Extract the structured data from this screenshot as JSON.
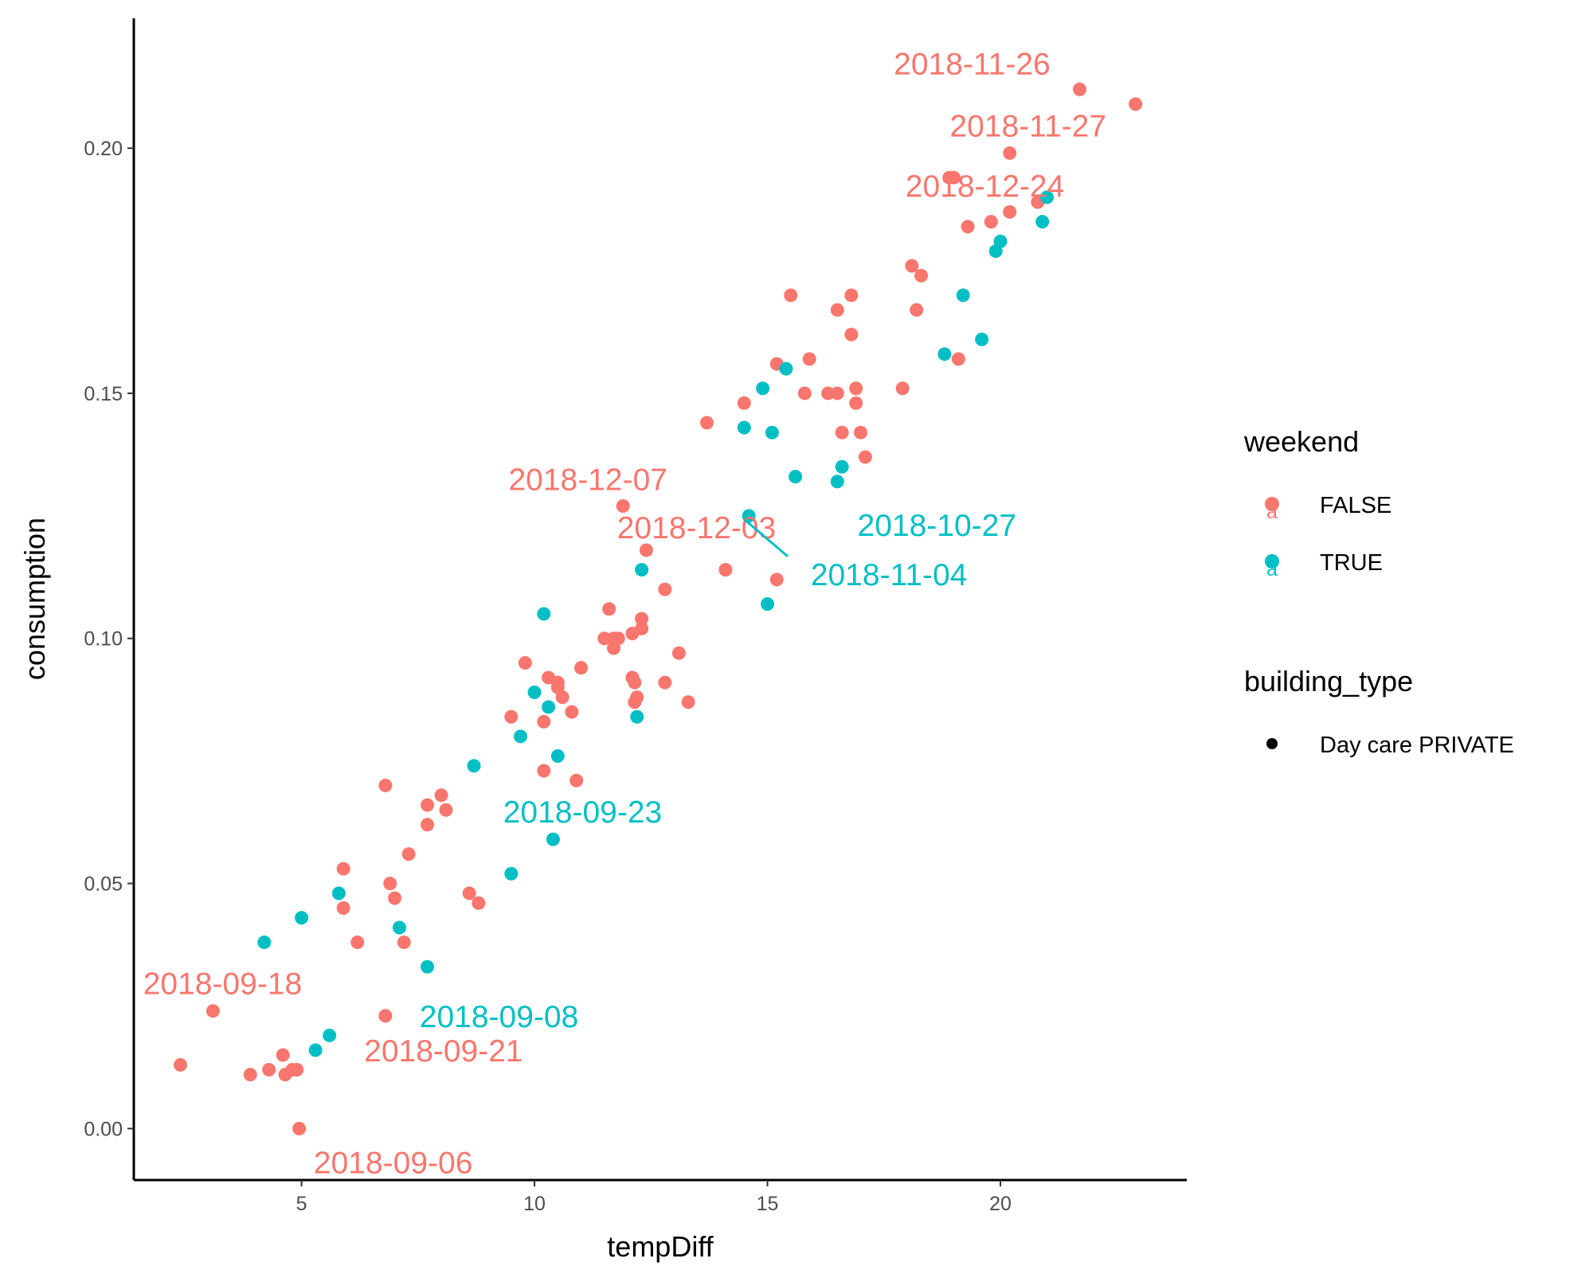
{
  "chart_data": {
    "type": "scatter",
    "title": "",
    "xlabel": "tempDiff",
    "ylabel": "consumption",
    "xlim": [
      1.4,
      24.0
    ],
    "ylim": [
      -0.0105,
      0.2265
    ],
    "x_ticks": [
      5,
      10,
      15,
      20
    ],
    "x_tick_labels": [
      "5",
      "10",
      "15",
      "20"
    ],
    "y_ticks": [
      0.0,
      0.05,
      0.1,
      0.15,
      0.2
    ],
    "y_tick_labels": [
      "0.00",
      "0.05",
      "0.10",
      "0.15",
      "0.20"
    ],
    "grid": false,
    "legend_position": "right",
    "colors": {
      "FALSE": "#F8766D",
      "TRUE": "#00BFC4",
      "axis": "#000000"
    },
    "legends": [
      {
        "title": "weekend",
        "entries": [
          {
            "label": "FALSE",
            "color": "#F8766D"
          },
          {
            "label": "TRUE",
            "color": "#00BFC4"
          }
        ]
      },
      {
        "title": "building_type",
        "entries": [
          {
            "label": "Day care PRIVATE",
            "color": "#000000"
          }
        ]
      }
    ],
    "series": [
      {
        "name": "FALSE",
        "color": "#F8766D",
        "points": [
          [
            2.4,
            0.013
          ],
          [
            3.1,
            0.024
          ],
          [
            3.9,
            0.011
          ],
          [
            4.3,
            0.012
          ],
          [
            4.6,
            0.015
          ],
          [
            4.65,
            0.011
          ],
          [
            4.8,
            0.012
          ],
          [
            4.9,
            0.012
          ],
          [
            4.95,
            0.0
          ],
          [
            5.9,
            0.053
          ],
          [
            5.9,
            0.045
          ],
          [
            6.2,
            0.038
          ],
          [
            6.8,
            0.023
          ],
          [
            6.8,
            0.07
          ],
          [
            6.9,
            0.05
          ],
          [
            7.0,
            0.047
          ],
          [
            7.2,
            0.038
          ],
          [
            7.3,
            0.056
          ],
          [
            7.7,
            0.066
          ],
          [
            7.7,
            0.062
          ],
          [
            8.0,
            0.068
          ],
          [
            8.1,
            0.065
          ],
          [
            8.6,
            0.048
          ],
          [
            8.8,
            0.046
          ],
          [
            9.5,
            0.084
          ],
          [
            9.8,
            0.095
          ],
          [
            10.2,
            0.073
          ],
          [
            10.2,
            0.083
          ],
          [
            10.3,
            0.092
          ],
          [
            10.5,
            0.091
          ],
          [
            10.5,
            0.09
          ],
          [
            10.6,
            0.088
          ],
          [
            10.8,
            0.085
          ],
          [
            10.9,
            0.071
          ],
          [
            11.0,
            0.094
          ],
          [
            11.5,
            0.1
          ],
          [
            11.6,
            0.106
          ],
          [
            11.7,
            0.1
          ],
          [
            11.7,
            0.098
          ],
          [
            11.8,
            0.1
          ],
          [
            11.9,
            0.127
          ],
          [
            12.1,
            0.101
          ],
          [
            12.1,
            0.092
          ],
          [
            12.15,
            0.091
          ],
          [
            12.15,
            0.087
          ],
          [
            12.2,
            0.088
          ],
          [
            12.3,
            0.102
          ],
          [
            12.3,
            0.104
          ],
          [
            12.4,
            0.118
          ],
          [
            12.8,
            0.091
          ],
          [
            12.8,
            0.11
          ],
          [
            13.1,
            0.097
          ],
          [
            13.3,
            0.087
          ],
          [
            13.7,
            0.144
          ],
          [
            14.1,
            0.114
          ],
          [
            14.5,
            0.148
          ],
          [
            15.2,
            0.112
          ],
          [
            15.2,
            0.156
          ],
          [
            15.5,
            0.17
          ],
          [
            15.8,
            0.15
          ],
          [
            15.9,
            0.157
          ],
          [
            16.3,
            0.15
          ],
          [
            16.5,
            0.15
          ],
          [
            16.5,
            0.167
          ],
          [
            16.6,
            0.142
          ],
          [
            16.8,
            0.162
          ],
          [
            16.8,
            0.17
          ],
          [
            16.9,
            0.151
          ],
          [
            16.9,
            0.148
          ],
          [
            17.0,
            0.142
          ],
          [
            17.1,
            0.137
          ],
          [
            17.9,
            0.151
          ],
          [
            18.1,
            0.176
          ],
          [
            18.2,
            0.167
          ],
          [
            18.3,
            0.174
          ],
          [
            18.9,
            0.194
          ],
          [
            19.0,
            0.194
          ],
          [
            19.1,
            0.157
          ],
          [
            19.3,
            0.184
          ],
          [
            19.8,
            0.185
          ],
          [
            20.2,
            0.187
          ],
          [
            20.2,
            0.199
          ],
          [
            20.8,
            0.189
          ],
          [
            21.7,
            0.212
          ],
          [
            22.9,
            0.209
          ]
        ]
      },
      {
        "name": "TRUE",
        "color": "#00BFC4",
        "points": [
          [
            4.2,
            0.038
          ],
          [
            5.0,
            0.043
          ],
          [
            5.3,
            0.016
          ],
          [
            5.6,
            0.019
          ],
          [
            5.8,
            0.048
          ],
          [
            7.1,
            0.041
          ],
          [
            7.7,
            0.033
          ],
          [
            8.7,
            0.074
          ],
          [
            9.5,
            0.052
          ],
          [
            9.7,
            0.08
          ],
          [
            10.0,
            0.089
          ],
          [
            10.2,
            0.105
          ],
          [
            10.3,
            0.086
          ],
          [
            10.4,
            0.059
          ],
          [
            10.5,
            0.076
          ],
          [
            12.2,
            0.084
          ],
          [
            12.3,
            0.114
          ],
          [
            14.5,
            0.143
          ],
          [
            14.6,
            0.125
          ],
          [
            14.9,
            0.151
          ],
          [
            15.0,
            0.107
          ],
          [
            15.1,
            0.142
          ],
          [
            15.4,
            0.155
          ],
          [
            15.6,
            0.133
          ],
          [
            16.5,
            0.132
          ],
          [
            16.6,
            0.135
          ],
          [
            18.8,
            0.158
          ],
          [
            19.2,
            0.17
          ],
          [
            19.6,
            0.161
          ],
          [
            19.9,
            0.179
          ],
          [
            20.0,
            0.181
          ],
          [
            20.9,
            0.185
          ],
          [
            21.0,
            0.19
          ]
        ]
      }
    ],
    "annotations": [
      {
        "text": "2018-11-26",
        "series": "FALSE",
        "x": 21.7,
        "y": 0.212
      },
      {
        "text": "2018-11-27",
        "series": "FALSE",
        "x": 20.2,
        "y": 0.199
      },
      {
        "text": "2018-12-24",
        "series": "FALSE",
        "x": 19.0,
        "y": 0.194
      },
      {
        "text": "2018-12-07",
        "series": "FALSE",
        "x": 11.9,
        "y": 0.127
      },
      {
        "text": "2018-12-03",
        "series": "FALSE",
        "x": 12.4,
        "y": 0.118
      },
      {
        "text": "2018-10-27",
        "series": "TRUE",
        "x": 16.5,
        "y": 0.132
      },
      {
        "text": "2018-11-04",
        "series": "TRUE",
        "x": 14.6,
        "y": 0.125
      },
      {
        "text": "2018-09-23",
        "series": "TRUE",
        "x": 10.4,
        "y": 0.059
      },
      {
        "text": "2018-09-18",
        "series": "FALSE",
        "x": 3.1,
        "y": 0.024
      },
      {
        "text": "2018-09-08",
        "series": "TRUE",
        "x": 7.7,
        "y": 0.033
      },
      {
        "text": "2018-09-21",
        "series": "FALSE",
        "x": 6.8,
        "y": 0.023
      },
      {
        "text": "2018-09-06",
        "series": "FALSE",
        "x": 4.95,
        "y": 0.0
      }
    ]
  }
}
